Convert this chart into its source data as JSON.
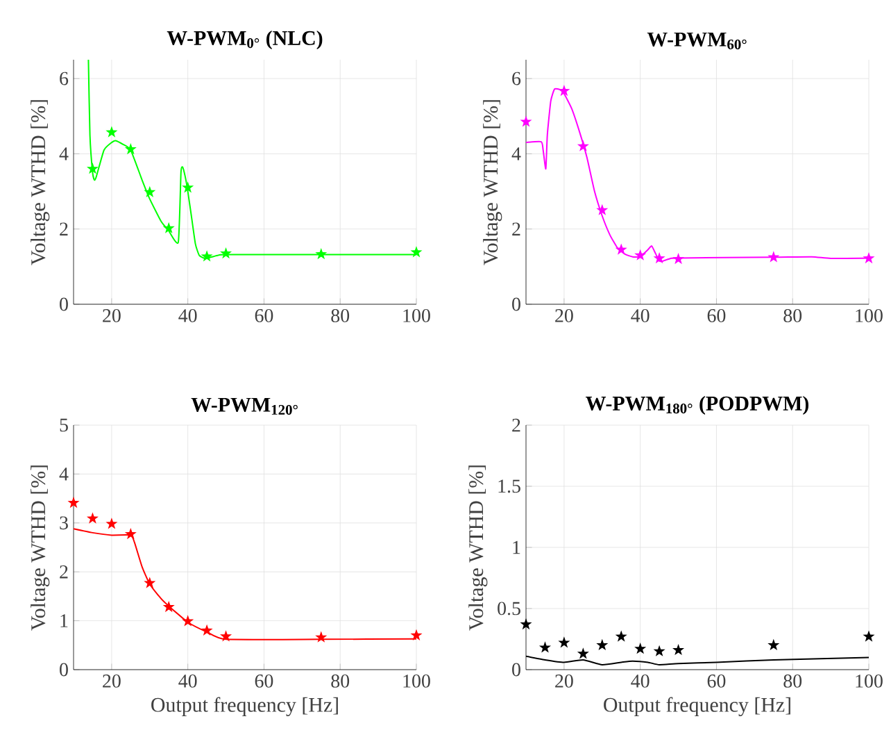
{
  "chart_data": [
    {
      "type": "line",
      "title": "W-PWM$_{0°}$ (NLC)",
      "ylabel": "Voltage WTHD [%]",
      "xlim": [
        10,
        100
      ],
      "ylim": [
        0,
        6.5
      ],
      "xticks": [
        20,
        40,
        60,
        80,
        100
      ],
      "yticks": [
        0,
        2,
        4,
        6
      ],
      "grid": true,
      "series": [
        {
          "color": "#00ff00",
          "marker": "none",
          "x": [
            13.9,
            14.3,
            15,
            15.5,
            16,
            18,
            20,
            21,
            23,
            25,
            28,
            30,
            33,
            35,
            37.5,
            38.2,
            38.6,
            39.3,
            40,
            41,
            42,
            43,
            44.5,
            46,
            48,
            50,
            75,
            100
          ],
          "values": [
            6.5,
            4.5,
            3.5,
            3.3,
            3.4,
            4.1,
            4.3,
            4.35,
            4.25,
            4.1,
            3.3,
            2.8,
            2.2,
            1.95,
            1.65,
            3.5,
            3.65,
            3.4,
            3.0,
            2.3,
            1.6,
            1.3,
            1.22,
            1.25,
            1.3,
            1.32,
            1.32,
            1.32
          ]
        },
        {
          "type": "scatter",
          "color": "#00ff00",
          "marker": "star",
          "x": [
            15,
            20,
            25,
            30,
            35,
            40,
            45,
            50,
            75,
            100
          ],
          "values": [
            3.6,
            4.57,
            4.12,
            2.98,
            2.02,
            3.1,
            1.27,
            1.35,
            1.33,
            1.38
          ]
        }
      ]
    },
    {
      "type": "line",
      "title": "W-PWM$_{60°}$",
      "ylabel": "Voltage WTHD [%]",
      "xlim": [
        10,
        100
      ],
      "ylim": [
        0,
        6.5
      ],
      "xticks": [
        20,
        40,
        60,
        80,
        100
      ],
      "yticks": [
        0,
        2,
        4,
        6
      ],
      "grid": true,
      "series": [
        {
          "color": "#ff00ff",
          "marker": "none",
          "x": [
            10,
            14,
            14.5,
            15.2,
            15.6,
            16.5,
            17.5,
            19,
            20,
            22,
            24,
            26,
            28,
            30,
            32,
            34,
            36,
            38,
            40,
            42,
            43,
            44,
            45,
            46,
            48,
            50,
            75,
            85,
            90,
            100
          ],
          "values": [
            4.3,
            4.32,
            4.1,
            3.6,
            4.5,
            5.4,
            5.72,
            5.7,
            5.6,
            5.2,
            4.6,
            3.9,
            3.0,
            2.35,
            1.85,
            1.5,
            1.33,
            1.26,
            1.27,
            1.45,
            1.55,
            1.35,
            1.15,
            1.15,
            1.22,
            1.23,
            1.25,
            1.26,
            1.22,
            1.23
          ]
        },
        {
          "type": "scatter",
          "color": "#ff00ff",
          "marker": "star",
          "x": [
            10,
            20,
            25,
            30,
            35,
            40,
            45,
            50,
            75,
            100
          ],
          "values": [
            4.85,
            5.67,
            4.2,
            2.5,
            1.45,
            1.3,
            1.22,
            1.2,
            1.25,
            1.22
          ]
        }
      ]
    },
    {
      "type": "line",
      "title": "W-PWM$_{120°}$",
      "xlabel": "Output frequency [Hz]",
      "ylabel": "Voltage WTHD [%]",
      "xlim": [
        10,
        100
      ],
      "ylim": [
        0,
        5
      ],
      "xticks": [
        20,
        40,
        60,
        80,
        100
      ],
      "yticks": [
        0,
        1,
        2,
        3,
        4,
        5
      ],
      "grid": true,
      "series": [
        {
          "color": "#ff0000",
          "marker": "none",
          "x": [
            10,
            15,
            20,
            25,
            26,
            28,
            30,
            33,
            35,
            40,
            45,
            50,
            75,
            100
          ],
          "values": [
            2.88,
            2.8,
            2.75,
            2.75,
            2.6,
            2.1,
            1.75,
            1.45,
            1.3,
            0.97,
            0.77,
            0.62,
            0.62,
            0.63
          ]
        },
        {
          "type": "scatter",
          "color": "#ff0000",
          "marker": "star",
          "x": [
            10,
            15,
            20,
            25,
            30,
            35,
            40,
            45,
            50,
            75,
            100
          ],
          "values": [
            3.41,
            3.09,
            2.98,
            2.77,
            1.77,
            1.28,
            0.99,
            0.8,
            0.68,
            0.66,
            0.7
          ]
        }
      ]
    },
    {
      "type": "line",
      "title": "W-PWM$_{180°}$ (PODPWM)",
      "xlabel": "Output frequency [Hz]",
      "ylabel": "Voltage WTHD [%]",
      "xlim": [
        10,
        100
      ],
      "ylim": [
        0,
        2
      ],
      "xticks": [
        20,
        40,
        60,
        80,
        100
      ],
      "yticks": [
        0,
        0.5,
        1,
        1.5,
        2
      ],
      "grid": true,
      "series": [
        {
          "color": "#000000",
          "marker": "none",
          "x": [
            10,
            15,
            20,
            25,
            30,
            35,
            38,
            42,
            45,
            50,
            60,
            75,
            100
          ],
          "values": [
            0.11,
            0.08,
            0.06,
            0.08,
            0.04,
            0.06,
            0.07,
            0.06,
            0.04,
            0.05,
            0.06,
            0.08,
            0.1
          ]
        },
        {
          "type": "scatter",
          "color": "#000000",
          "marker": "star",
          "x": [
            10,
            15,
            20,
            25,
            30,
            35,
            40,
            45,
            50,
            75,
            100
          ],
          "values": [
            0.37,
            0.18,
            0.22,
            0.13,
            0.2,
            0.27,
            0.17,
            0.15,
            0.16,
            0.2,
            0.27
          ]
        }
      ]
    }
  ]
}
